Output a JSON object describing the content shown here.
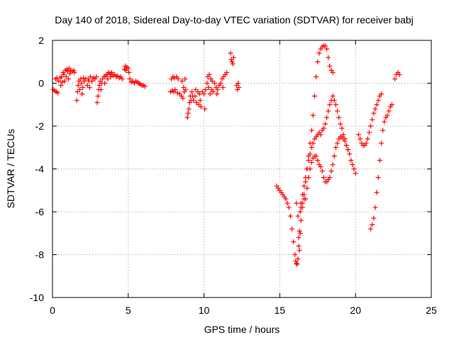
{
  "chart_data": {
    "type": "scatter",
    "title": "Day 140 of 2018, Sidereal Day-to-day VTEC variation (SDTVAR) for receiver babj",
    "xlabel": "GPS time / hours",
    "ylabel": "SDTVAR / TECUs",
    "xlim": [
      0,
      25
    ],
    "ylim": [
      -10,
      2
    ],
    "xticks": [
      0,
      5,
      10,
      15,
      20,
      25
    ],
    "yticks": [
      -10,
      -8,
      -6,
      -4,
      -2,
      0,
      2
    ],
    "grid": true,
    "marker": "+",
    "color": "#ff0000",
    "series": [
      {
        "points": [
          [
            0.05,
            -0.3
          ],
          [
            0.15,
            -0.35
          ],
          [
            0.2,
            0.2
          ],
          [
            0.25,
            -0.4
          ],
          [
            0.3,
            0.25
          ],
          [
            0.35,
            -0.45
          ],
          [
            0.4,
            0.1
          ],
          [
            0.5,
            0.25
          ],
          [
            0.55,
            -0.1
          ],
          [
            0.6,
            0.3
          ],
          [
            0.65,
            0.05
          ],
          [
            0.7,
            0.5
          ],
          [
            0.75,
            0.4
          ],
          [
            0.8,
            0.1
          ],
          [
            0.85,
            0.6
          ],
          [
            0.9,
            0.3
          ],
          [
            0.95,
            0.65
          ],
          [
            1.0,
            0.55
          ],
          [
            1.05,
            0.2
          ],
          [
            1.1,
            0.7
          ],
          [
            1.15,
            0.45
          ],
          [
            1.2,
            0.6
          ],
          [
            1.3,
            0.55
          ],
          [
            1.4,
            0.6
          ],
          [
            1.45,
            0.5
          ],
          [
            1.6,
            -0.8
          ],
          [
            1.65,
            -0.4
          ],
          [
            1.7,
            -0.1
          ],
          [
            1.75,
            0.1
          ],
          [
            1.8,
            -0.3
          ],
          [
            1.85,
            0.2
          ],
          [
            1.9,
            0.0
          ],
          [
            1.95,
            -0.5
          ],
          [
            2.0,
            -0.2
          ],
          [
            2.05,
            0.25
          ],
          [
            2.1,
            0.1
          ],
          [
            2.2,
            0.2
          ],
          [
            2.3,
            -0.1
          ],
          [
            2.35,
            0.2
          ],
          [
            2.4,
            0.1
          ],
          [
            2.45,
            -0.2
          ],
          [
            2.5,
            0.3
          ],
          [
            2.6,
            0.1
          ],
          [
            2.7,
            0.25
          ],
          [
            2.8,
            0.2
          ],
          [
            2.9,
            0.3
          ],
          [
            2.95,
            -0.9
          ],
          [
            3.0,
            -0.6
          ],
          [
            3.05,
            -0.3
          ],
          [
            3.1,
            -0.1
          ],
          [
            3.15,
            0.1
          ],
          [
            3.2,
            -0.3
          ],
          [
            3.25,
            0.0
          ],
          [
            3.3,
            0.2
          ],
          [
            3.4,
            0.3
          ],
          [
            3.45,
            0.0
          ],
          [
            3.5,
            0.35
          ],
          [
            3.6,
            0.4
          ],
          [
            3.65,
            0.2
          ],
          [
            3.7,
            0.5
          ],
          [
            3.8,
            0.45
          ],
          [
            3.85,
            0.3
          ],
          [
            3.9,
            0.5
          ],
          [
            4.0,
            0.35
          ],
          [
            4.1,
            0.4
          ],
          [
            4.2,
            0.3
          ],
          [
            4.3,
            0.35
          ],
          [
            4.4,
            0.25
          ],
          [
            4.5,
            0.3
          ],
          [
            4.6,
            0.2
          ],
          [
            4.75,
            0.65
          ],
          [
            4.8,
            0.8
          ],
          [
            4.85,
            0.6
          ],
          [
            4.9,
            0.75
          ],
          [
            5.0,
            0.7
          ],
          [
            5.05,
            0.5
          ],
          [
            5.1,
            0.2
          ],
          [
            5.2,
            0.05
          ],
          [
            5.3,
            0.1
          ],
          [
            5.4,
            0.0
          ],
          [
            5.5,
            0.1
          ],
          [
            5.6,
            0.05
          ],
          [
            5.7,
            0.0
          ],
          [
            5.8,
            -0.05
          ],
          [
            5.9,
            -0.1
          ],
          [
            6.0,
            -0.1
          ],
          [
            6.1,
            -0.15
          ],
          [
            7.8,
            -0.4
          ],
          [
            7.85,
            0.2
          ],
          [
            7.9,
            -0.35
          ],
          [
            7.95,
            0.3
          ],
          [
            8.0,
            -0.4
          ],
          [
            8.05,
            0.25
          ],
          [
            8.1,
            -0.3
          ],
          [
            8.2,
            0.3
          ],
          [
            8.25,
            -0.45
          ],
          [
            8.3,
            0.2
          ],
          [
            8.4,
            -0.5
          ],
          [
            8.5,
            -0.6
          ],
          [
            8.55,
            0.1
          ],
          [
            8.6,
            -0.7
          ],
          [
            8.65,
            -0.2
          ],
          [
            8.7,
            -0.4
          ],
          [
            8.75,
            0.2
          ],
          [
            8.8,
            -0.3
          ],
          [
            8.9,
            -1.6
          ],
          [
            8.95,
            -1.4
          ],
          [
            9.0,
            -1.2
          ],
          [
            9.05,
            -0.9
          ],
          [
            9.1,
            -0.6
          ],
          [
            9.15,
            -0.8
          ],
          [
            9.2,
            -0.4
          ],
          [
            9.25,
            -0.6
          ],
          [
            9.3,
            -0.8
          ],
          [
            9.4,
            -0.6
          ],
          [
            9.45,
            -0.3
          ],
          [
            9.5,
            -0.9
          ],
          [
            9.6,
            -0.4
          ],
          [
            9.65,
            -1.0
          ],
          [
            9.7,
            -0.5
          ],
          [
            9.75,
            -0.8
          ],
          [
            9.8,
            -1.1
          ],
          [
            9.9,
            -0.4
          ],
          [
            10.0,
            -0.5
          ],
          [
            10.05,
            -1.2
          ],
          [
            10.1,
            -0.3
          ],
          [
            10.2,
            0.0
          ],
          [
            10.25,
            0.3
          ],
          [
            10.3,
            -0.2
          ],
          [
            10.35,
            0.4
          ],
          [
            10.4,
            -0.5
          ],
          [
            10.45,
            0.2
          ],
          [
            10.5,
            -0.3
          ],
          [
            10.55,
            0.1
          ],
          [
            10.6,
            -0.4
          ],
          [
            10.7,
            0.0
          ],
          [
            10.8,
            -0.2
          ],
          [
            10.85,
            -0.5
          ],
          [
            10.9,
            -0.3
          ],
          [
            11.0,
            -0.1
          ],
          [
            11.1,
            0.0
          ],
          [
            11.2,
            0.2
          ],
          [
            11.25,
            -0.2
          ],
          [
            11.3,
            0.3
          ],
          [
            11.4,
            0.4
          ],
          [
            11.5,
            0.5
          ],
          [
            11.75,
            1.4
          ],
          [
            11.8,
            1.1
          ],
          [
            11.85,
            1.0
          ],
          [
            11.9,
            0.9
          ],
          [
            11.95,
            1.2
          ],
          [
            12.15,
            -0.1
          ],
          [
            12.2,
            -0.3
          ],
          [
            12.25,
            0.0
          ],
          [
            12.3,
            -0.2
          ],
          [
            14.8,
            -4.8
          ],
          [
            14.9,
            -4.9
          ],
          [
            15.0,
            -5.0
          ],
          [
            15.1,
            -5.1
          ],
          [
            15.2,
            -5.2
          ],
          [
            15.3,
            -5.3
          ],
          [
            15.4,
            -5.4
          ],
          [
            15.5,
            -5.6
          ],
          [
            15.6,
            -5.8
          ],
          [
            15.7,
            -6.2
          ],
          [
            15.8,
            -6.8
          ],
          [
            15.9,
            -7.4
          ],
          [
            16.0,
            -8.0
          ],
          [
            16.05,
            -8.3
          ],
          [
            16.1,
            -8.4
          ],
          [
            16.15,
            -8.45
          ],
          [
            16.2,
            -8.2
          ],
          [
            16.25,
            -7.6
          ],
          [
            16.3,
            -6.9
          ],
          [
            16.35,
            -6.0
          ],
          [
            16.4,
            -5.8
          ],
          [
            16.5,
            -5.6
          ],
          [
            16.6,
            -5.4
          ],
          [
            16.1,
            -5.6
          ],
          [
            16.2,
            -6.2
          ],
          [
            16.25,
            -7.2
          ],
          [
            16.3,
            -7.8
          ],
          [
            16.35,
            -7.0
          ],
          [
            16.4,
            -6.4
          ],
          [
            16.5,
            -5.8
          ],
          [
            16.6,
            -5.2
          ],
          [
            16.7,
            -4.6
          ],
          [
            16.8,
            -4.0
          ],
          [
            16.9,
            -3.4
          ],
          [
            17.0,
            -2.8
          ],
          [
            17.1,
            -2.2
          ],
          [
            17.2,
            -1.5
          ],
          [
            17.3,
            -0.6
          ],
          [
            17.4,
            0.3
          ],
          [
            17.5,
            1.0
          ],
          [
            17.6,
            1.4
          ],
          [
            17.7,
            1.6
          ],
          [
            17.8,
            1.7
          ],
          [
            17.9,
            1.75
          ],
          [
            18.0,
            1.75
          ],
          [
            18.1,
            1.6
          ],
          [
            18.2,
            1.2
          ],
          [
            18.3,
            0.8
          ],
          [
            18.4,
            0.6
          ],
          [
            18.5,
            0.5
          ],
          [
            16.4,
            -5.6
          ],
          [
            16.5,
            -5.2
          ],
          [
            16.6,
            -4.8
          ],
          [
            16.7,
            -4.4
          ],
          [
            16.8,
            -4.0
          ],
          [
            16.9,
            -3.6
          ],
          [
            17.0,
            -3.3
          ],
          [
            17.1,
            -3.0
          ],
          [
            17.2,
            -2.8
          ],
          [
            17.3,
            -2.6
          ],
          [
            17.4,
            -2.5
          ],
          [
            17.5,
            -2.4
          ],
          [
            17.6,
            -2.3
          ],
          [
            17.7,
            -2.4
          ],
          [
            17.8,
            -2.2
          ],
          [
            17.9,
            -2.1
          ],
          [
            18.0,
            -1.9
          ],
          [
            18.1,
            -1.6
          ],
          [
            18.2,
            -1.3
          ],
          [
            18.3,
            -1.0
          ],
          [
            18.4,
            -0.8
          ],
          [
            18.5,
            -0.6
          ],
          [
            18.6,
            -0.8
          ],
          [
            18.7,
            -1.0
          ],
          [
            18.8,
            -1.3
          ],
          [
            18.9,
            -1.6
          ],
          [
            19.0,
            -1.9
          ],
          [
            19.1,
            -2.1
          ],
          [
            19.2,
            -2.4
          ],
          [
            19.3,
            -2.6
          ],
          [
            19.4,
            -2.9
          ],
          [
            19.5,
            -3.1
          ],
          [
            19.6,
            -3.3
          ],
          [
            19.7,
            -3.6
          ],
          [
            19.8,
            -3.8
          ],
          [
            19.9,
            -4.0
          ],
          [
            20.0,
            -4.2
          ],
          [
            16.7,
            -5.4
          ],
          [
            16.8,
            -4.9
          ],
          [
            16.9,
            -4.4
          ],
          [
            17.0,
            -4.0
          ],
          [
            17.1,
            -3.7
          ],
          [
            17.2,
            -3.5
          ],
          [
            17.3,
            -3.4
          ],
          [
            17.4,
            -3.4
          ],
          [
            17.5,
            -3.6
          ],
          [
            17.6,
            -3.8
          ],
          [
            17.7,
            -3.9
          ],
          [
            17.8,
            -4.1
          ],
          [
            17.9,
            -4.4
          ],
          [
            18.0,
            -4.6
          ],
          [
            18.1,
            -4.6
          ],
          [
            18.2,
            -4.5
          ],
          [
            18.3,
            -4.4
          ],
          [
            18.4,
            -4.1
          ],
          [
            18.5,
            -3.8
          ],
          [
            18.6,
            -3.4
          ],
          [
            18.7,
            -3.0
          ],
          [
            18.8,
            -2.8
          ],
          [
            18.9,
            -2.6
          ],
          [
            19.0,
            -2.5
          ],
          [
            19.1,
            -2.5
          ],
          [
            19.2,
            -2.6
          ],
          [
            19.3,
            -2.7
          ],
          [
            19.4,
            -2.9
          ],
          [
            19.5,
            -3.1
          ],
          [
            20.2,
            -2.4
          ],
          [
            20.3,
            -2.6
          ],
          [
            20.4,
            -2.8
          ],
          [
            20.5,
            -2.9
          ],
          [
            20.6,
            -2.9
          ],
          [
            20.7,
            -2.8
          ],
          [
            20.8,
            -2.6
          ],
          [
            20.9,
            -2.3
          ],
          [
            21.0,
            -2.0
          ],
          [
            21.1,
            -1.7
          ],
          [
            21.2,
            -1.4
          ],
          [
            21.3,
            -1.2
          ],
          [
            21.4,
            -1.0
          ],
          [
            21.5,
            -0.8
          ],
          [
            21.6,
            -0.6
          ],
          [
            21.7,
            -0.5
          ],
          [
            21.0,
            -6.8
          ],
          [
            21.1,
            -6.6
          ],
          [
            21.2,
            -6.3
          ],
          [
            21.3,
            -5.8
          ],
          [
            21.4,
            -5.1
          ],
          [
            21.5,
            -4.4
          ],
          [
            21.6,
            -3.6
          ],
          [
            21.7,
            -2.8
          ],
          [
            21.8,
            -2.2
          ],
          [
            21.9,
            -1.8
          ],
          [
            22.0,
            -1.6
          ],
          [
            22.1,
            -1.5
          ],
          [
            22.2,
            -1.3
          ],
          [
            22.3,
            -1.1
          ],
          [
            22.4,
            -1.0
          ],
          [
            22.6,
            0.2
          ],
          [
            22.7,
            0.4
          ],
          [
            22.8,
            0.5
          ],
          [
            22.9,
            0.4
          ]
        ]
      }
    ]
  }
}
